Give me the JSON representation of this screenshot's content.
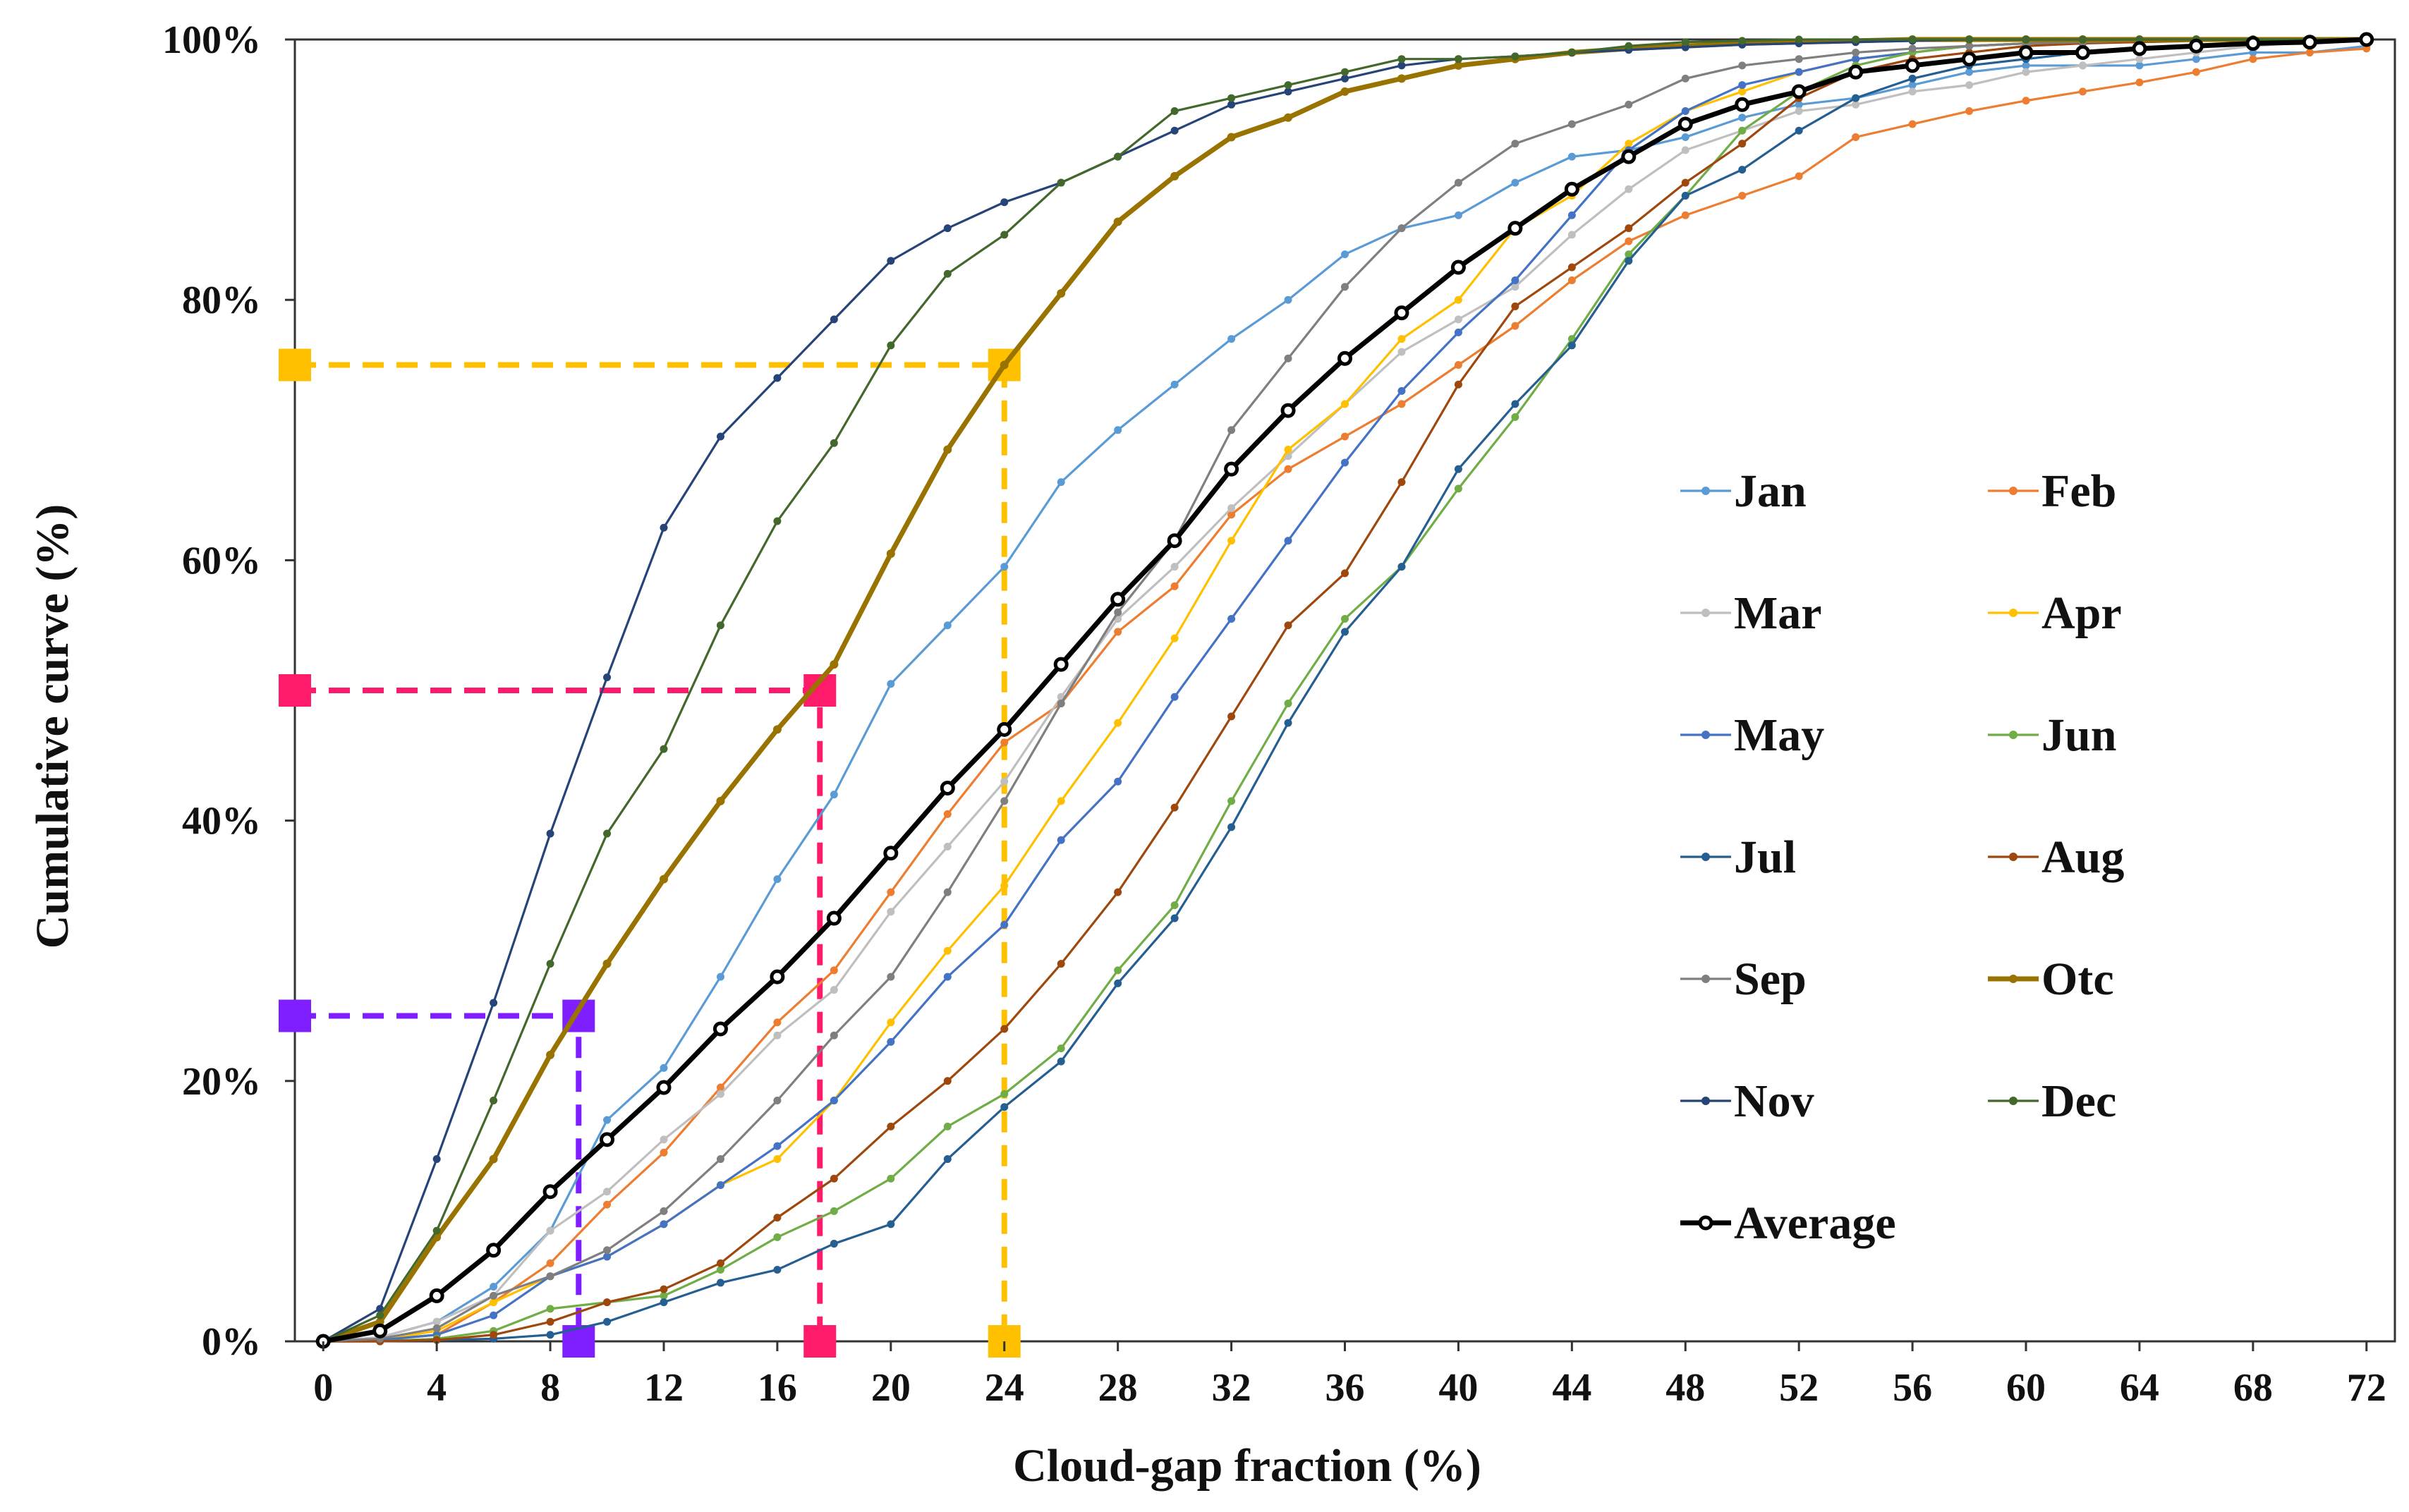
{
  "chart_data": {
    "type": "line",
    "title": "",
    "xlabel": "Cloud-gap fraction (%)",
    "ylabel": "Cumulative curve (%)",
    "xlim": [
      -1,
      73
    ],
    "ylim": [
      0,
      100
    ],
    "x_ticks": [
      0,
      4,
      8,
      12,
      16,
      20,
      24,
      28,
      32,
      36,
      40,
      44,
      48,
      52,
      56,
      60,
      64,
      68,
      72
    ],
    "y_ticks": [
      0,
      20,
      40,
      60,
      80,
      100
    ],
    "x_tick_labels": [
      "0",
      "4",
      "8",
      "12",
      "16",
      "20",
      "24",
      "28",
      "32",
      "36",
      "40",
      "44",
      "48",
      "52",
      "56",
      "60",
      "64",
      "68",
      "72"
    ],
    "y_tick_labels": [
      "0%",
      "20%",
      "40%",
      "60%",
      "80%",
      "100%"
    ],
    "grid": false,
    "legend_position": "right",
    "x": [
      0,
      2,
      4,
      6,
      8,
      10,
      12,
      14,
      16,
      18,
      20,
      22,
      24,
      26,
      28,
      30,
      32,
      34,
      36,
      38,
      40,
      42,
      44,
      46,
      48,
      50,
      52,
      54,
      56,
      58,
      60,
      62,
      64,
      66,
      68,
      70,
      72
    ],
    "series": [
      {
        "name": "Jan",
        "color": "#5b9bd5",
        "width": 3.2,
        "values": [
          0,
          0.3,
          1.5,
          4.2,
          8.5,
          17,
          21,
          28,
          35.5,
          42,
          50.5,
          55,
          59.5,
          66,
          70,
          73.5,
          77,
          80,
          83.5,
          85.5,
          86.5,
          89,
          91,
          91.5,
          92.5,
          94,
          95,
          95.5,
          96.5,
          97.5,
          98,
          98,
          98,
          98.5,
          99,
          99,
          99.5
        ]
      },
      {
        "name": "Feb",
        "color": "#ed7d31",
        "width": 3.2,
        "values": [
          0,
          0.1,
          0.5,
          3,
          6,
          10.5,
          14.5,
          19.5,
          24.5,
          28.5,
          34.5,
          40.5,
          46,
          49,
          54.5,
          58,
          63.5,
          67,
          69.5,
          72,
          75,
          78,
          81.5,
          84.5,
          86.5,
          88,
          89.5,
          92.5,
          93.5,
          94.5,
          95.3,
          96,
          96.7,
          97.5,
          98.5,
          99,
          99.3
        ]
      },
      {
        "name": "Mar",
        "color": "#bfbfbf",
        "width": 3.2,
        "values": [
          0,
          0.3,
          1.5,
          3.5,
          8.5,
          11.5,
          15.5,
          19,
          23.5,
          27,
          33,
          38,
          43,
          49.5,
          55.5,
          59.5,
          64,
          68,
          72,
          76,
          78.5,
          81,
          85,
          88.5,
          91.5,
          93,
          94.5,
          95,
          96,
          96.5,
          97.5,
          98,
          98.5,
          99,
          99.5,
          99.8,
          100
        ]
      },
      {
        "name": "Apr",
        "color": "#ffc000",
        "width": 3.2,
        "values": [
          0,
          0.1,
          0.8,
          3,
          5,
          6.5,
          9,
          12,
          14,
          18.5,
          24.5,
          30,
          35,
          41.5,
          47.5,
          54,
          61.5,
          68.5,
          72,
          77,
          80,
          85.5,
          88,
          92,
          94.5,
          96,
          97.5,
          98.5,
          99,
          99.5,
          99.7,
          99.8,
          99.9,
          100,
          100,
          100,
          100
        ]
      },
      {
        "name": "May",
        "color": "#4472c4",
        "width": 3.2,
        "values": [
          0,
          0.1,
          0.5,
          2,
          5,
          6.5,
          9,
          12,
          15,
          18.5,
          23,
          28,
          32,
          38.5,
          43,
          49.5,
          55.5,
          61.5,
          67.5,
          73,
          77.5,
          81.5,
          86.5,
          91.5,
          94.5,
          96.5,
          97.5,
          98.5,
          99,
          99.5,
          99.7,
          99.8,
          99.9,
          100,
          100,
          100,
          100
        ]
      },
      {
        "name": "Jun",
        "color": "#70ad47",
        "width": 3.2,
        "values": [
          0,
          0,
          0.2,
          0.8,
          2.5,
          3,
          3.5,
          5.5,
          8,
          10,
          12.5,
          16.5,
          19,
          22.5,
          28.5,
          33.5,
          41.5,
          49,
          55.5,
          59.5,
          65.5,
          71,
          77,
          83.5,
          88,
          93,
          96,
          98,
          99,
          99.5,
          99.7,
          99.8,
          100,
          100,
          100,
          100,
          100
        ]
      },
      {
        "name": "Jul",
        "color": "#255e91",
        "width": 3.2,
        "values": [
          0,
          0,
          0.1,
          0.2,
          0.5,
          1.5,
          3,
          4.5,
          5.5,
          7.5,
          9,
          14,
          18,
          21.5,
          27.5,
          32.5,
          39.5,
          47.5,
          54.5,
          59.5,
          67,
          72,
          76.5,
          83,
          88,
          90,
          93,
          95.5,
          97,
          98,
          98.5,
          99,
          99.3,
          99.5,
          99.7,
          99.9,
          100
        ]
      },
      {
        "name": "Aug",
        "color": "#9e480e",
        "width": 3.2,
        "values": [
          0,
          0,
          0.1,
          0.5,
          1.5,
          3,
          4,
          6,
          9.5,
          12.5,
          16.5,
          20,
          24,
          29,
          34.5,
          41,
          48,
          55,
          59,
          66,
          73.5,
          79.5,
          82.5,
          85.5,
          89,
          92,
          95.5,
          97.5,
          98.5,
          99,
          99.5,
          99.7,
          99.8,
          99.9,
          100,
          100,
          100
        ]
      },
      {
        "name": "Sep",
        "color": "#7f7f7f",
        "width": 3.2,
        "values": [
          0,
          0.2,
          1,
          3.5,
          5,
          7,
          10,
          14,
          18.5,
          23.5,
          28,
          34.5,
          41.5,
          49,
          56,
          61.5,
          70,
          75.5,
          81,
          85.5,
          89,
          92,
          93.5,
          95,
          97,
          98,
          98.5,
          99,
          99.3,
          99.5,
          99.7,
          99.8,
          99.9,
          100,
          100,
          100,
          100
        ]
      },
      {
        "name": "Otc",
        "color": "#997300",
        "width": 7,
        "values": [
          0,
          1.5,
          8,
          14,
          22,
          29,
          35.5,
          41.5,
          47,
          52,
          60.5,
          68.5,
          75,
          80.5,
          86,
          89.5,
          92.5,
          94,
          96,
          97,
          98,
          98.5,
          99,
          99.3,
          99.5,
          99.7,
          99.8,
          99.9,
          100,
          100,
          100,
          100,
          100,
          100,
          100,
          100,
          100
        ]
      },
      {
        "name": "Nov",
        "color": "#264478",
        "width": 3.2,
        "values": [
          0,
          2.5,
          14,
          26,
          39,
          51,
          62.5,
          69.5,
          74,
          78.5,
          83,
          85.5,
          87.5,
          89,
          91,
          93,
          95,
          96,
          97,
          98,
          98.5,
          98.7,
          99,
          99.2,
          99.4,
          99.6,
          99.7,
          99.8,
          99.9,
          100,
          100,
          100,
          100,
          100,
          100,
          100,
          100
        ]
      },
      {
        "name": "Dec",
        "color": "#43682b",
        "width": 3.2,
        "values": [
          0,
          2,
          8.5,
          18.5,
          29,
          39,
          45.5,
          55,
          63,
          69,
          76.5,
          82,
          85,
          89,
          91,
          94.5,
          95.5,
          96.5,
          97.5,
          98.5,
          98.5,
          98.7,
          99,
          99.5,
          99.8,
          99.9,
          100,
          100,
          100,
          100,
          100,
          100,
          100,
          100,
          100,
          100,
          100
        ]
      },
      {
        "name": "Average",
        "color": "#000000",
        "width": 7,
        "marker": "ring",
        "values": [
          0,
          0.8,
          3.5,
          7,
          11.5,
          15.5,
          19.5,
          24,
          28,
          32.5,
          37.5,
          42.5,
          47,
          52,
          57,
          61.5,
          67,
          71.5,
          75.5,
          79,
          82.5,
          85.5,
          88.5,
          91,
          93.5,
          95,
          96,
          97.5,
          98,
          98.5,
          99,
          99,
          99.3,
          99.5,
          99.7,
          99.8,
          100
        ]
      }
    ],
    "annotations": [
      {
        "label": "25%",
        "color": "#7f1fff",
        "x": 9,
        "y": 25
      },
      {
        "label": "50%",
        "color": "#ff1b6b",
        "x": 17.5,
        "y": 50
      },
      {
        "label": "75%",
        "color": "#ffc000",
        "x": 24,
        "y": 75
      }
    ]
  }
}
